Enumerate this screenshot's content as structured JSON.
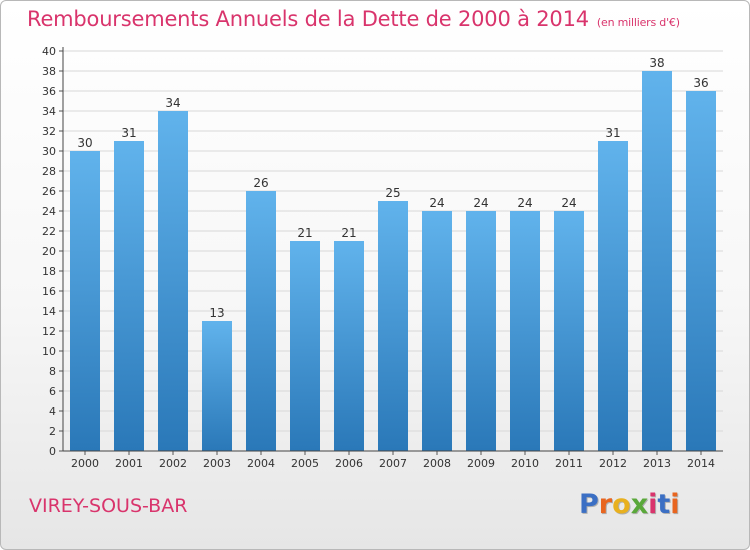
{
  "title": "Remboursements Annuels de la Dette de 2000 à 2014",
  "unit_label": "(en milliers d'€)",
  "commune": "VIREY-SOUS-BAR",
  "logo": {
    "text": "Proxiti",
    "letter_colors": [
      "#3b6fc4",
      "#e8651f",
      "#e8b01f",
      "#5aa83a",
      "#d9346c",
      "#3b6fc4",
      "#e8651f"
    ]
  },
  "colors": {
    "bar_top": "#61b3ec",
    "bar_bottom": "#2a78b8",
    "title": "#d9346c",
    "grid": "#d8d8d8"
  },
  "chart_data": {
    "type": "bar",
    "categories": [
      "2000",
      "2001",
      "2002",
      "2003",
      "2004",
      "2005",
      "2006",
      "2007",
      "2008",
      "2009",
      "2010",
      "2011",
      "2012",
      "2013",
      "2014"
    ],
    "values": [
      30,
      31,
      34,
      13,
      26,
      21,
      21,
      25,
      24,
      24,
      24,
      24,
      31,
      38,
      36
    ],
    "ylim": [
      0,
      40
    ],
    "yticks": [
      0,
      2,
      4,
      6,
      8,
      10,
      12,
      14,
      16,
      18,
      20,
      22,
      24,
      26,
      28,
      30,
      32,
      34,
      36,
      38,
      40
    ],
    "data_labels": true,
    "grid": true
  }
}
